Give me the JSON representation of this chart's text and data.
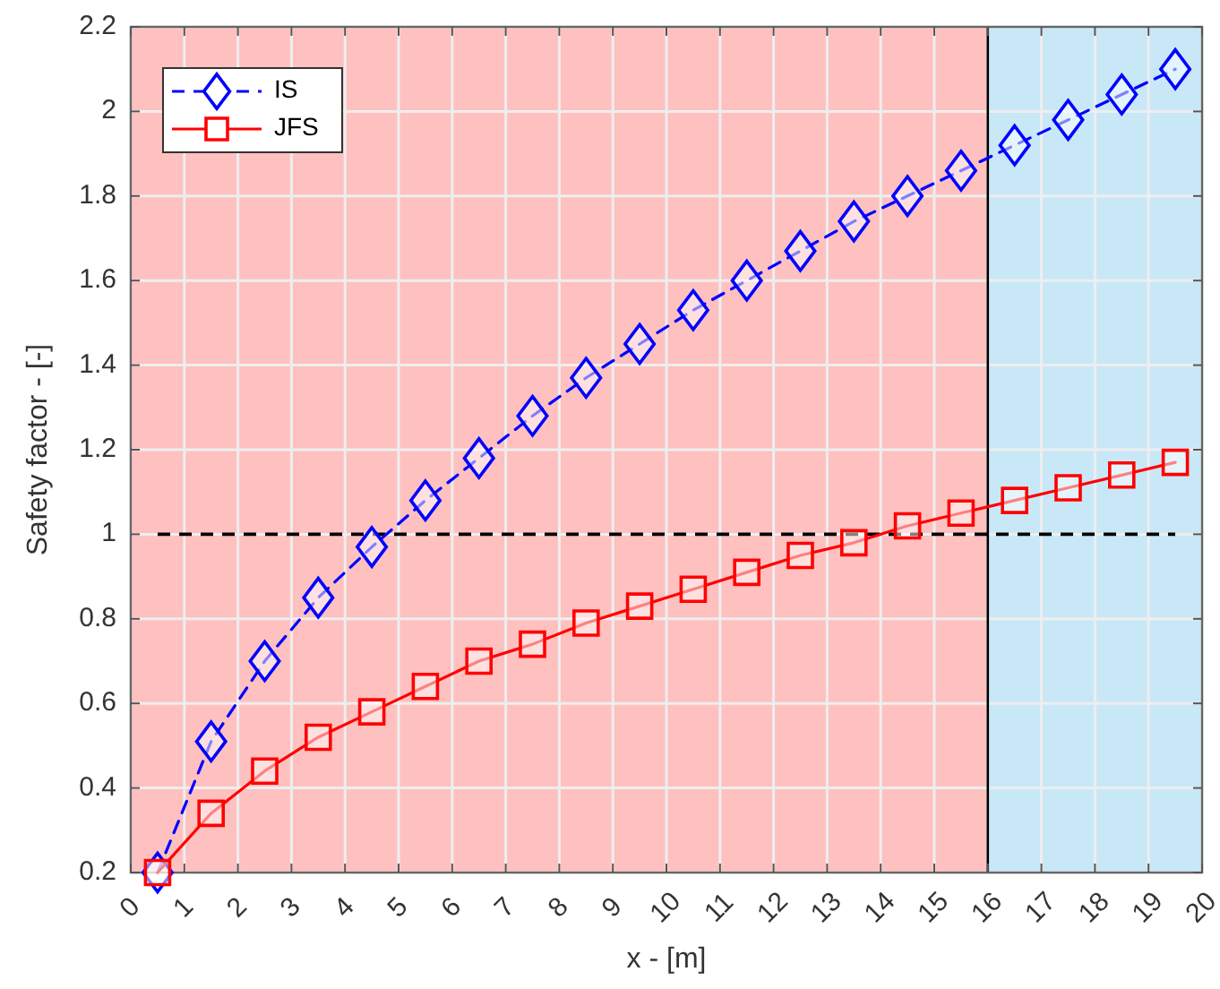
{
  "chart_data": {
    "type": "line",
    "xlabel": "x - [m]",
    "ylabel": "Safety factor - [-]",
    "x": [
      0.5,
      1.5,
      2.5,
      3.5,
      4.5,
      5.5,
      6.5,
      7.5,
      8.5,
      9.5,
      10.5,
      11.5,
      12.5,
      13.5,
      14.5,
      15.5,
      16.5,
      17.5,
      18.5,
      19.5
    ],
    "series": [
      {
        "name": "IS",
        "color": "#0000ff",
        "marker": "diamond",
        "line_style": "dashed",
        "values": [
          0.2,
          0.51,
          0.7,
          0.85,
          0.97,
          1.08,
          1.18,
          1.28,
          1.37,
          1.45,
          1.53,
          1.6,
          1.67,
          1.74,
          1.8,
          1.86,
          1.92,
          1.98,
          2.04,
          2.1
        ]
      },
      {
        "name": "JFS",
        "color": "#ff0000",
        "marker": "square",
        "line_style": "solid",
        "values": [
          0.2,
          0.34,
          0.44,
          0.52,
          0.58,
          0.64,
          0.7,
          0.74,
          0.79,
          0.83,
          0.87,
          0.91,
          0.95,
          0.98,
          1.02,
          1.05,
          1.08,
          1.11,
          1.14,
          1.17
        ]
      }
    ],
    "xlim": [
      0,
      20
    ],
    "xticks": [
      0,
      1,
      2,
      3,
      4,
      5,
      6,
      7,
      8,
      9,
      10,
      11,
      12,
      13,
      14,
      15,
      16,
      17,
      18,
      19,
      20
    ],
    "ylim": [
      0.2,
      2.2
    ],
    "yticks": [
      0.2,
      0.4,
      0.6,
      0.8,
      1,
      1.2,
      1.4,
      1.6,
      1.8,
      2,
      2.2
    ],
    "bands": [
      {
        "axis": "x",
        "from": 0,
        "to": 16,
        "color": "#ffc0c0"
      },
      {
        "axis": "x",
        "from": 16,
        "to": 20,
        "color": "#c8e8f8"
      }
    ],
    "ref_lines": [
      {
        "axis": "y",
        "value": 1,
        "color": "#000000",
        "line_style": "dashed"
      },
      {
        "axis": "x",
        "value": 16,
        "color": "#000000",
        "line_style": "solid"
      }
    ],
    "grid": true,
    "legend": "top left"
  }
}
